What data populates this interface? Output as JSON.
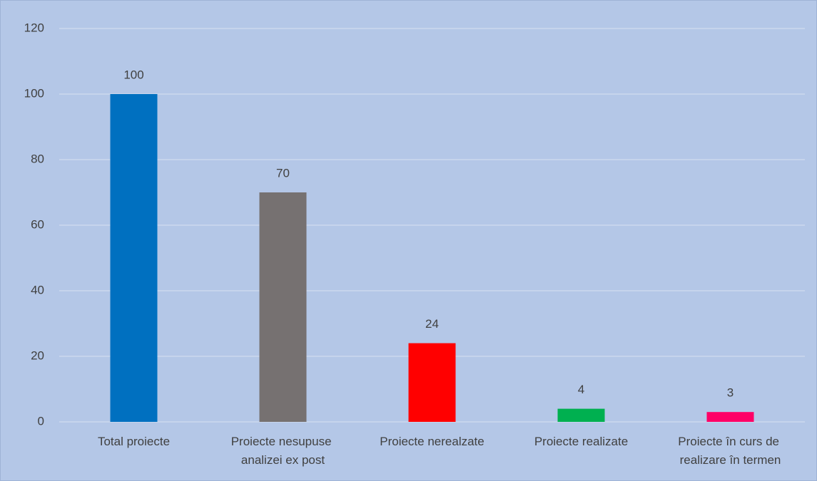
{
  "chart_data": {
    "type": "bar",
    "categories": [
      "Total proiecte",
      "Proiecte nesupuse analizei ex post",
      "Proiecte nerealzate",
      "Proiecte realizate",
      "Proiecte în curs de realizare în termen"
    ],
    "values": [
      100,
      70,
      24,
      4,
      3
    ],
    "colors": [
      "#0070c0",
      "#767171",
      "#ff0000",
      "#00b050",
      "#ff0066"
    ],
    "ylim": [
      0,
      120
    ],
    "yticks": [
      0,
      20,
      40,
      60,
      80,
      100,
      120
    ],
    "grid": true
  }
}
